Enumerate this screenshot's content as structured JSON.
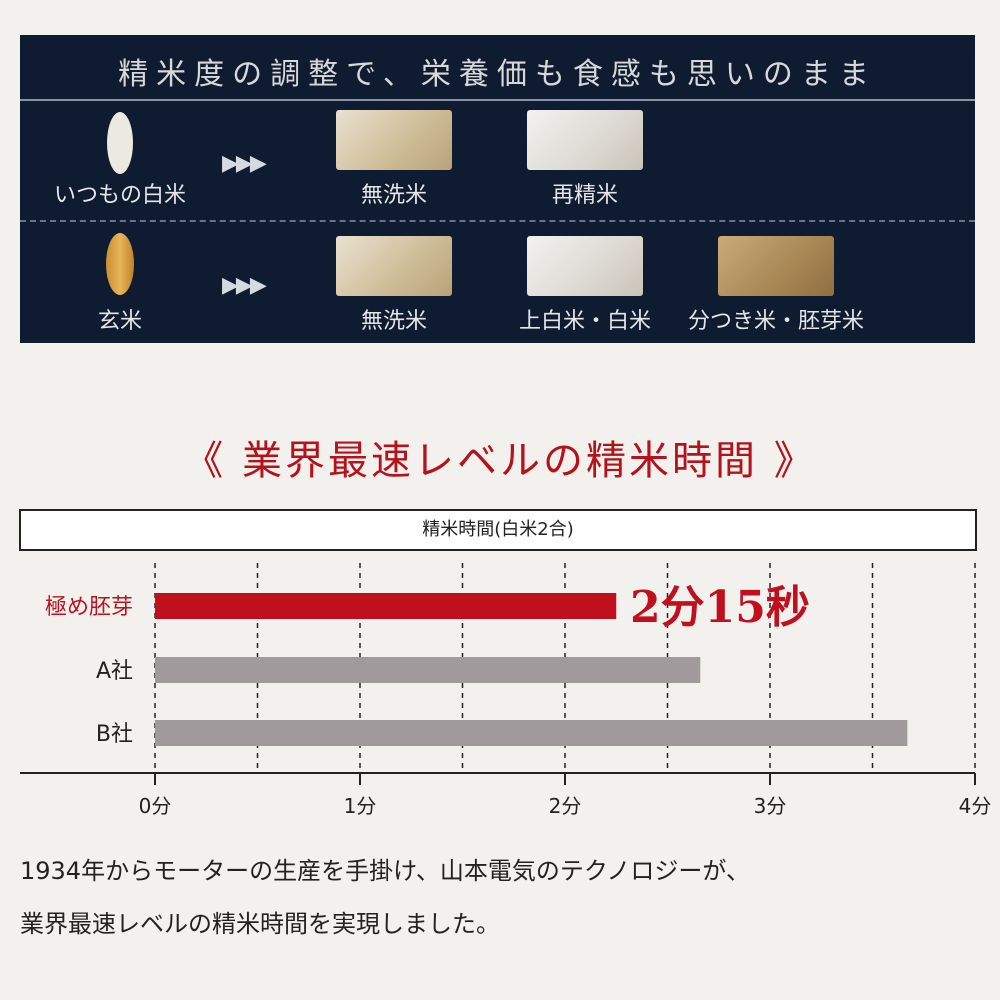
{
  "panel": {
    "title": "精米度の調整で、栄養価も食感も思いのまま",
    "rows": [
      {
        "source": "いつもの白米",
        "arrow": "▶▶▶",
        "outputs": [
          "無洗米",
          "再精米"
        ]
      },
      {
        "source": "玄米",
        "arrow": "▶▶▶",
        "outputs": [
          "無洗米",
          "上白米・白米",
          "分つき米・胚芽米"
        ]
      }
    ]
  },
  "heading": "《 業界最速レベルの精米時間 》",
  "chart_data": {
    "type": "bar",
    "orientation": "horizontal",
    "title": "精米時間(白米2合)",
    "categories": [
      "極め胚芽",
      "A社",
      "B社"
    ],
    "values": [
      2.25,
      2.66,
      3.67
    ],
    "unit": "分",
    "xlim": [
      0,
      4
    ],
    "x_ticks": [
      "0分",
      "1分",
      "2分",
      "3分",
      "4分"
    ],
    "grid": "dashed vertical every 0.5",
    "colors": [
      "#c0101e",
      "#a09a9c",
      "#a09a9c"
    ],
    "annotation": "2分15秒"
  },
  "footer": [
    "1934年からモーターの生産を手掛け、山本電気のテクノロジーが、",
    "業界最速レベルの精米時間を実現しました。"
  ]
}
